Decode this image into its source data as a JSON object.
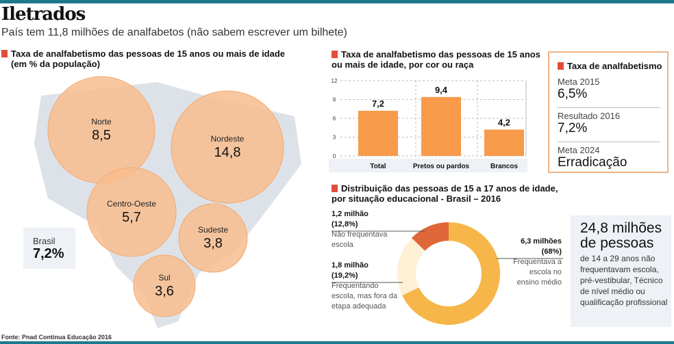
{
  "header": {
    "title": "Iletrados",
    "subtitle": "País tem 11,8 milhões de analfabetos (não sabem escrever um bilhete)"
  },
  "colors": {
    "accent": "#e14d3a",
    "bar": "#f79a4a",
    "bubble": "#f8bd8e",
    "map": "#dde2e8",
    "rule": "#1d7a8c",
    "donut": [
      "#f6b64a",
      "#fdf0d5",
      "#e0673a"
    ]
  },
  "chart_data": [
    {
      "type": "bubble",
      "title": "Taxa de analfabetismo das pessoas de 15 anos ou mais de idade",
      "subtitle": "(em % da população)",
      "categories": [
        "Norte",
        "Nordeste",
        "Centro-Oeste",
        "Sudeste",
        "Sul"
      ],
      "values": [
        8.5,
        14.8,
        5.7,
        3.8,
        3.6
      ],
      "labels": [
        "8,5",
        "14,8",
        "5,7",
        "3,8",
        "3,6"
      ],
      "national": {
        "label": "Brasil",
        "value": "7,2%"
      }
    },
    {
      "type": "bar",
      "title": "Taxa de analfabetismo das pessoas de 15 anos ou mais de idade, por cor ou raça",
      "categories": [
        "Total",
        "Pretos ou pardos",
        "Brancos"
      ],
      "values": [
        7.2,
        9.4,
        4.2
      ],
      "labels": [
        "7,2",
        "9,4",
        "4,2"
      ],
      "ylim": [
        0,
        12
      ],
      "yticks": [
        "0",
        "3",
        "6",
        "9",
        "12"
      ],
      "grid": true
    },
    {
      "type": "pie",
      "title": "Distribuição das pessoas de 15 a 17 anos de idade, por situação educacional - Brasil – 2016",
      "slices": [
        {
          "value": 68,
          "amount": "6,3 milhões",
          "pct": "(68%)",
          "desc": "Frequentava a escola no ensino médio"
        },
        {
          "value": 19.2,
          "amount": "1,8 milhão",
          "pct": "(19,2%)",
          "desc": "Frequentando escola, mas fora da etapa adequada"
        },
        {
          "value": 12.8,
          "amount": "1,2 milhão",
          "pct": "(12,8%)",
          "desc": "Não frequentava escola"
        }
      ]
    }
  ],
  "goals": {
    "title": "Taxa de analfabetismo",
    "items": [
      {
        "label": "Meta 2015",
        "value": "6,5%"
      },
      {
        "label": "Resultado 2016",
        "value": "7,2%"
      },
      {
        "label": "Meta 2024",
        "value": "Erradicação"
      }
    ]
  },
  "callout": {
    "big1": "24,8 milhões",
    "big2": "de pessoas",
    "text": "de 14 a 29 anos não frequentavam escola, pré-vestibular, Técnico de nível médio ou qualificação profissional"
  },
  "source": "Fonte: Pnad Contínua Educação 2016"
}
